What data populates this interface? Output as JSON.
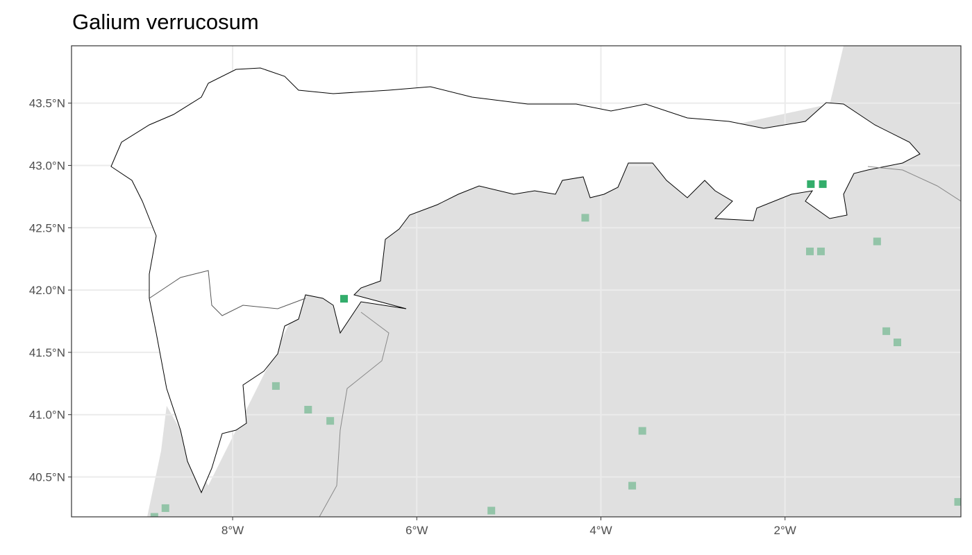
{
  "title": "Galium verrucosum",
  "chart_data": {
    "type": "scatter",
    "title": "Galium verrucosum",
    "xlim": [
      -9.75,
      -0.09
    ],
    "ylim": [
      40.18,
      43.96
    ],
    "x_ticks": [
      {
        "value": -8,
        "label": "8°W"
      },
      {
        "value": -6,
        "label": "6°W"
      },
      {
        "value": -4,
        "label": "4°W"
      },
      {
        "value": -2,
        "label": "2°W"
      }
    ],
    "y_ticks": [
      {
        "value": 40.5,
        "label": "40.5°N"
      },
      {
        "value": 41.0,
        "label": "41.0°N"
      },
      {
        "value": 41.5,
        "label": "41.5°N"
      },
      {
        "value": 42.0,
        "label": "42.0°N"
      },
      {
        "value": 42.5,
        "label": "42.5°N"
      },
      {
        "value": 43.0,
        "label": "43.0°N"
      },
      {
        "value": 43.5,
        "label": "43.5°N"
      }
    ],
    "grid": true,
    "colors": {
      "inside": "#33ad6b",
      "outside": "#93c4a8",
      "land": "#e0e0e0",
      "region": "#ffffff"
    },
    "series": [
      {
        "group": "inside",
        "points": [
          [
            -1.72,
            42.85
          ],
          [
            -1.59,
            42.85
          ],
          [
            -6.79,
            41.93
          ]
        ]
      },
      {
        "group": "outside",
        "points": [
          [
            -4.17,
            42.58
          ],
          [
            -1.73,
            42.31
          ],
          [
            -1.61,
            42.31
          ],
          [
            -1.0,
            42.39
          ],
          [
            -0.9,
            41.67
          ],
          [
            -0.78,
            41.58
          ],
          [
            -7.53,
            41.23
          ],
          [
            -7.18,
            41.04
          ],
          [
            -6.94,
            40.95
          ],
          [
            -3.55,
            40.87
          ],
          [
            -3.66,
            40.43
          ],
          [
            -5.19,
            40.23
          ],
          [
            -8.73,
            40.25
          ],
          [
            -8.85,
            40.18
          ],
          [
            -0.12,
            40.3
          ]
        ]
      }
    ]
  }
}
